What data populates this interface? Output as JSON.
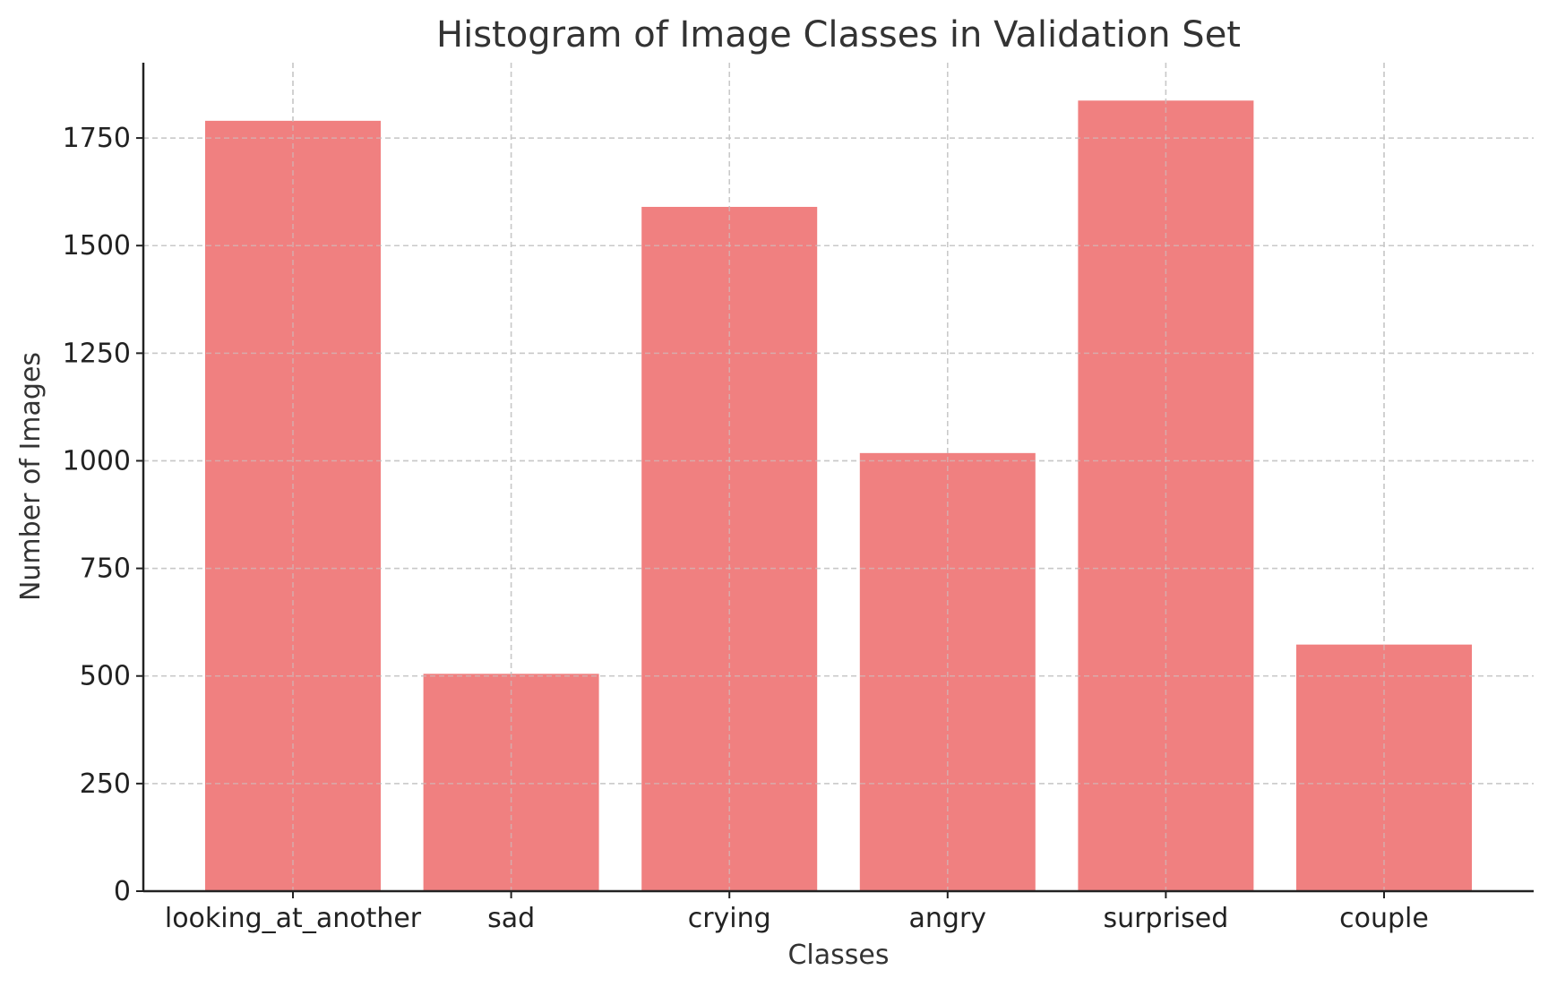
{
  "chart_data": {
    "type": "bar",
    "title": "Histogram of Image Classes in Validation Set",
    "xlabel": "Classes",
    "ylabel": "Number of Images",
    "categories": [
      "looking_at_another",
      "sad",
      "crying",
      "angry",
      "surprised",
      "couple"
    ],
    "values": [
      1790,
      505,
      1590,
      1018,
      1837,
      573
    ],
    "ylim": [
      0,
      1925
    ],
    "yticks": [
      0,
      250,
      500,
      750,
      1000,
      1250,
      1500,
      1750
    ],
    "grid": true,
    "bar_color": "#f08080"
  }
}
